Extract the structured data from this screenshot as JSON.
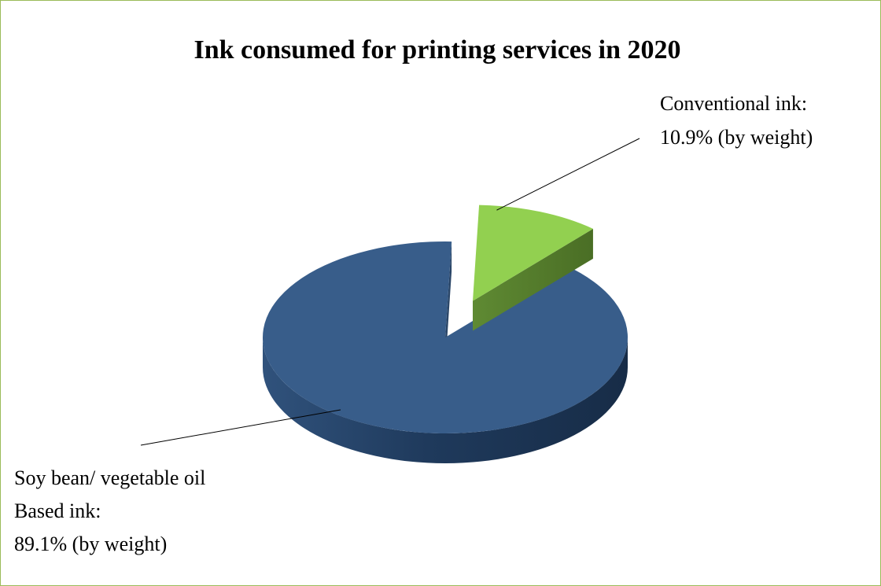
{
  "chart_data": {
    "type": "pie",
    "title": "Ink consumed for printing services in 2020",
    "slices": [
      {
        "label_lines": [
          "Soy bean/ vegetable oil",
          "Based ink:",
          "89.1% (by weight)"
        ],
        "value": 89.1,
        "color": "#385d8a",
        "exploded": false
      },
      {
        "label_lines": [
          "Conventional ink:",
          "10.9% (by weight)"
        ],
        "value": 10.9,
        "color": "#92d050",
        "exploded": true
      }
    ],
    "style": "3d-exploded",
    "legend": "none"
  }
}
